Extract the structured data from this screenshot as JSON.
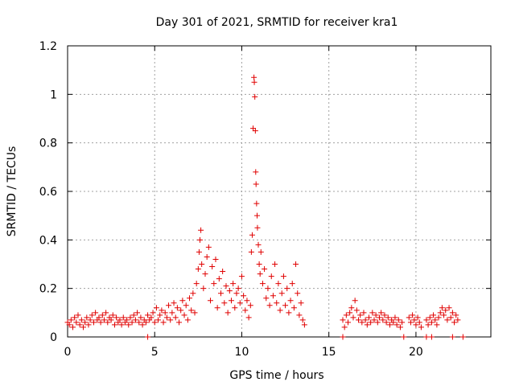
{
  "chart_data": {
    "type": "scatter",
    "title": "Day 301 of 2021, SRMTID for receiver kra1",
    "xlabel": "GPS time / hours",
    "ylabel": "SRMTID / TECUs",
    "xlim": [
      0,
      24.3
    ],
    "ylim": [
      0,
      1.2
    ],
    "xticks": [
      0,
      5,
      10,
      15,
      20
    ],
    "xtick_labels": [
      "0",
      "5",
      "10",
      "15",
      "20"
    ],
    "yticks": [
      0,
      0.2,
      0.4,
      0.6,
      0.8,
      1.0,
      1.2
    ],
    "ytick_labels": [
      "0",
      "0.2",
      "0.4",
      "0.6",
      "0.8",
      "1",
      "1.2"
    ],
    "grid": true,
    "marker": "+",
    "color": "#e00000",
    "series": [
      {
        "name": "kra1",
        "points": [
          [
            0.0,
            0.06
          ],
          [
            0.1,
            0.05
          ],
          [
            0.2,
            0.07
          ],
          [
            0.3,
            0.04
          ],
          [
            0.4,
            0.08
          ],
          [
            0.5,
            0.06
          ],
          [
            0.6,
            0.09
          ],
          [
            0.7,
            0.05
          ],
          [
            0.8,
            0.07
          ],
          [
            0.9,
            0.04
          ],
          [
            1.0,
            0.06
          ],
          [
            1.1,
            0.08
          ],
          [
            1.2,
            0.05
          ],
          [
            1.3,
            0.07
          ],
          [
            1.4,
            0.09
          ],
          [
            1.5,
            0.06
          ],
          [
            1.6,
            0.1
          ],
          [
            1.7,
            0.07
          ],
          [
            1.8,
            0.08
          ],
          [
            1.9,
            0.06
          ],
          [
            2.0,
            0.09
          ],
          [
            2.1,
            0.07
          ],
          [
            2.2,
            0.1
          ],
          [
            2.3,
            0.06
          ],
          [
            2.4,
            0.08
          ],
          [
            2.5,
            0.07
          ],
          [
            2.6,
            0.09
          ],
          [
            2.7,
            0.05
          ],
          [
            2.8,
            0.08
          ],
          [
            2.9,
            0.06
          ],
          [
            3.0,
            0.07
          ],
          [
            3.1,
            0.05
          ],
          [
            3.2,
            0.08
          ],
          [
            3.3,
            0.06
          ],
          [
            3.4,
            0.07
          ],
          [
            3.5,
            0.05
          ],
          [
            3.6,
            0.08
          ],
          [
            3.7,
            0.06
          ],
          [
            3.8,
            0.09
          ],
          [
            3.9,
            0.07
          ],
          [
            4.0,
            0.1
          ],
          [
            4.1,
            0.06
          ],
          [
            4.2,
            0.08
          ],
          [
            4.3,
            0.05
          ],
          [
            4.4,
            0.07
          ],
          [
            4.5,
            0.06
          ],
          [
            4.6,
            0.09
          ],
          [
            4.7,
            0.07
          ],
          [
            4.8,
            0.08
          ],
          [
            4.9,
            0.1
          ],
          [
            5.0,
            0.06
          ],
          [
            5.1,
            0.12
          ],
          [
            5.2,
            0.07
          ],
          [
            5.3,
            0.09
          ],
          [
            5.4,
            0.11
          ],
          [
            5.5,
            0.06
          ],
          [
            5.6,
            0.1
          ],
          [
            5.7,
            0.08
          ],
          [
            5.8,
            0.13
          ],
          [
            5.9,
            0.07
          ],
          [
            6.0,
            0.1
          ],
          [
            6.1,
            0.14
          ],
          [
            6.2,
            0.08
          ],
          [
            6.3,
            0.12
          ],
          [
            6.4,
            0.06
          ],
          [
            6.5,
            0.11
          ],
          [
            6.6,
            0.15
          ],
          [
            6.7,
            0.09
          ],
          [
            6.8,
            0.13
          ],
          [
            6.9,
            0.07
          ],
          [
            7.0,
            0.16
          ],
          [
            7.1,
            0.11
          ],
          [
            7.2,
            0.18
          ],
          [
            7.3,
            0.1
          ],
          [
            7.4,
            0.22
          ],
          [
            7.5,
            0.28
          ],
          [
            7.55,
            0.35
          ],
          [
            7.6,
            0.4
          ],
          [
            7.65,
            0.44
          ],
          [
            7.7,
            0.3
          ],
          [
            7.8,
            0.2
          ],
          [
            7.9,
            0.26
          ],
          [
            8.0,
            0.33
          ],
          [
            8.1,
            0.37
          ],
          [
            8.2,
            0.15
          ],
          [
            8.3,
            0.29
          ],
          [
            8.4,
            0.22
          ],
          [
            8.5,
            0.32
          ],
          [
            8.6,
            0.12
          ],
          [
            8.7,
            0.24
          ],
          [
            8.8,
            0.18
          ],
          [
            8.9,
            0.27
          ],
          [
            9.0,
            0.14
          ],
          [
            9.1,
            0.21
          ],
          [
            9.2,
            0.1
          ],
          [
            9.3,
            0.19
          ],
          [
            9.4,
            0.15
          ],
          [
            9.5,
            0.22
          ],
          [
            9.6,
            0.12
          ],
          [
            9.7,
            0.18
          ],
          [
            9.8,
            0.2
          ],
          [
            9.9,
            0.14
          ],
          [
            10.0,
            0.25
          ],
          [
            10.1,
            0.17
          ],
          [
            10.2,
            0.11
          ],
          [
            10.3,
            0.15
          ],
          [
            10.4,
            0.08
          ],
          [
            10.5,
            0.13
          ],
          [
            10.55,
            0.35
          ],
          [
            10.6,
            0.42
          ],
          [
            10.65,
            0.86
          ],
          [
            10.7,
            1.07
          ],
          [
            10.72,
            1.05
          ],
          [
            10.75,
            0.99
          ],
          [
            10.78,
            0.85
          ],
          [
            10.8,
            0.68
          ],
          [
            10.82,
            0.63
          ],
          [
            10.85,
            0.55
          ],
          [
            10.88,
            0.5
          ],
          [
            10.9,
            0.45
          ],
          [
            10.95,
            0.38
          ],
          [
            11.0,
            0.3
          ],
          [
            11.05,
            0.26
          ],
          [
            11.1,
            0.35
          ],
          [
            11.2,
            0.22
          ],
          [
            11.3,
            0.28
          ],
          [
            11.4,
            0.16
          ],
          [
            11.5,
            0.2
          ],
          [
            11.6,
            0.13
          ],
          [
            11.7,
            0.25
          ],
          [
            11.8,
            0.17
          ],
          [
            11.9,
            0.3
          ],
          [
            12.0,
            0.14
          ],
          [
            12.1,
            0.22
          ],
          [
            12.2,
            0.11
          ],
          [
            12.3,
            0.18
          ],
          [
            12.4,
            0.25
          ],
          [
            12.5,
            0.13
          ],
          [
            12.6,
            0.2
          ],
          [
            12.7,
            0.1
          ],
          [
            12.8,
            0.15
          ],
          [
            12.9,
            0.22
          ],
          [
            13.0,
            0.12
          ],
          [
            13.1,
            0.3
          ],
          [
            13.2,
            0.18
          ],
          [
            13.3,
            0.09
          ],
          [
            13.4,
            0.14
          ],
          [
            13.5,
            0.07
          ],
          [
            13.6,
            0.05
          ],
          [
            15.8,
            0.07
          ],
          [
            15.9,
            0.04
          ],
          [
            16.0,
            0.09
          ],
          [
            16.1,
            0.06
          ],
          [
            16.2,
            0.1
          ],
          [
            16.3,
            0.12
          ],
          [
            16.4,
            0.08
          ],
          [
            16.5,
            0.15
          ],
          [
            16.6,
            0.11
          ],
          [
            16.7,
            0.07
          ],
          [
            16.8,
            0.09
          ],
          [
            16.9,
            0.06
          ],
          [
            17.0,
            0.1
          ],
          [
            17.1,
            0.07
          ],
          [
            17.2,
            0.05
          ],
          [
            17.3,
            0.08
          ],
          [
            17.4,
            0.06
          ],
          [
            17.5,
            0.1
          ],
          [
            17.6,
            0.07
          ],
          [
            17.7,
            0.09
          ],
          [
            17.8,
            0.06
          ],
          [
            17.9,
            0.08
          ],
          [
            18.0,
            0.1
          ],
          [
            18.1,
            0.07
          ],
          [
            18.2,
            0.09
          ],
          [
            18.3,
            0.06
          ],
          [
            18.4,
            0.08
          ],
          [
            18.5,
            0.05
          ],
          [
            18.6,
            0.07
          ],
          [
            18.7,
            0.06
          ],
          [
            18.8,
            0.08
          ],
          [
            18.9,
            0.05
          ],
          [
            19.0,
            0.07
          ],
          [
            19.1,
            0.04
          ],
          [
            19.2,
            0.06
          ],
          [
            19.6,
            0.08
          ],
          [
            19.7,
            0.06
          ],
          [
            19.8,
            0.09
          ],
          [
            19.9,
            0.07
          ],
          [
            20.0,
            0.05
          ],
          [
            20.1,
            0.08
          ],
          [
            20.2,
            0.06
          ],
          [
            20.3,
            0.04
          ],
          [
            20.6,
            0.07
          ],
          [
            20.7,
            0.05
          ],
          [
            20.8,
            0.08
          ],
          [
            20.9,
            0.06
          ],
          [
            21.0,
            0.09
          ],
          [
            21.1,
            0.07
          ],
          [
            21.2,
            0.05
          ],
          [
            21.3,
            0.08
          ],
          [
            21.4,
            0.1
          ],
          [
            21.5,
            0.12
          ],
          [
            21.6,
            0.09
          ],
          [
            21.7,
            0.11
          ],
          [
            21.8,
            0.07
          ],
          [
            21.9,
            0.12
          ],
          [
            22.0,
            0.08
          ],
          [
            22.1,
            0.1
          ],
          [
            22.2,
            0.06
          ],
          [
            22.3,
            0.09
          ],
          [
            22.4,
            0.07
          ],
          [
            4.6,
            0.0
          ],
          [
            15.8,
            0.0
          ],
          [
            19.3,
            0.0
          ],
          [
            20.6,
            0.0
          ],
          [
            20.9,
            0.0
          ],
          [
            22.1,
            0.0
          ],
          [
            22.7,
            0.0
          ]
        ]
      }
    ]
  }
}
